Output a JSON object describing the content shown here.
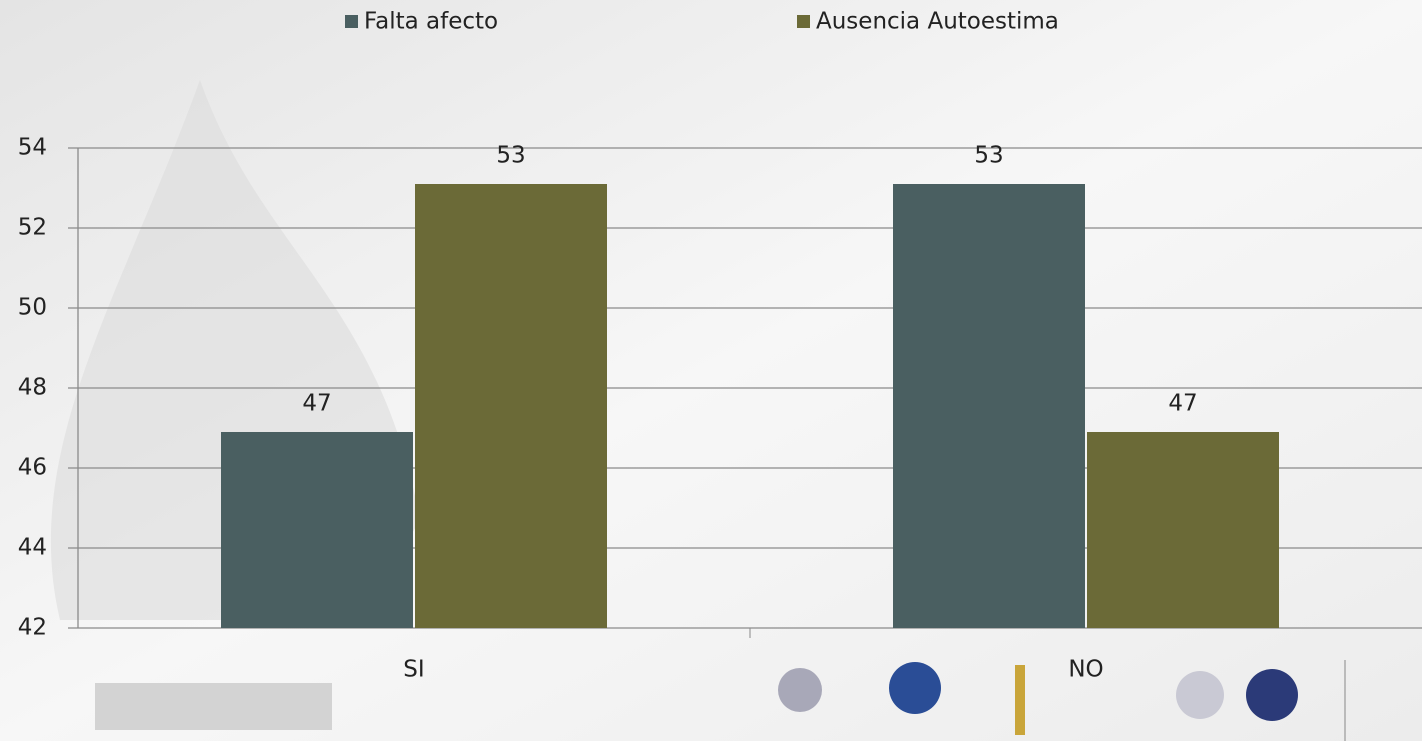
{
  "chart_data": {
    "type": "bar",
    "categories": [
      "SI",
      "NO"
    ],
    "series": [
      {
        "name": "Falta afecto",
        "color": "#4a5f61",
        "values": [
          46.9,
          53.1
        ],
        "value_labels": [
          "47",
          "53"
        ]
      },
      {
        "name": "Ausencia Autoestima",
        "color": "#6b6a37",
        "values": [
          53.1,
          46.9
        ],
        "value_labels": [
          "53",
          "47"
        ]
      }
    ],
    "ylim": [
      42,
      54
    ],
    "yticks": [
      42,
      44,
      46,
      48,
      50,
      52,
      54
    ],
    "grid": true,
    "legend": "top"
  }
}
